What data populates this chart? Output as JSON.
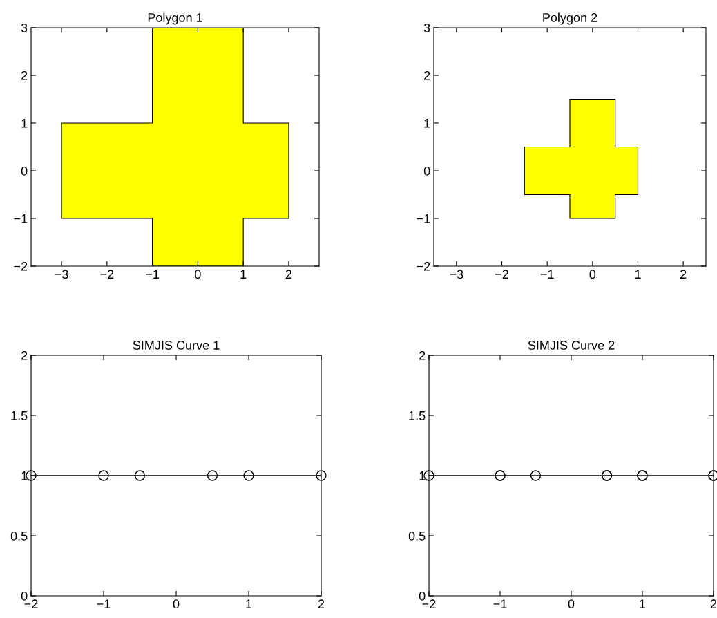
{
  "chart_data": [
    {
      "type": "area",
      "title": "Polygon 1",
      "xlim": [
        -3.67,
        2.67
      ],
      "ylim": [
        -2,
        3
      ],
      "xticks": [
        -3,
        -2,
        -1,
        0,
        1,
        2
      ],
      "yticks": [
        -2,
        -1,
        0,
        1,
        2,
        3
      ],
      "grid": false,
      "legend": false,
      "series": [
        {
          "color": "#ffff00",
          "x": [
            -1,
            1,
            1,
            2,
            2,
            1,
            1,
            -1,
            -1,
            -3,
            -3,
            -1
          ],
          "values": [
            -2,
            -2,
            -1,
            -1,
            1,
            1,
            3,
            3,
            1,
            1,
            -1,
            -1
          ]
        }
      ]
    },
    {
      "type": "area",
      "title": "Polygon 2",
      "xlim": [
        -3.5,
        2.5
      ],
      "ylim": [
        -2,
        3
      ],
      "xticks": [
        -3,
        -2,
        -1,
        0,
        1,
        2
      ],
      "yticks": [
        -2,
        -1,
        0,
        1,
        2,
        3
      ],
      "grid": false,
      "legend": false,
      "series": [
        {
          "color": "#ffff00",
          "x": [
            -0.5,
            0.5,
            0.5,
            1,
            1,
            0.5,
            0.5,
            -0.5,
            -0.5,
            -1.5,
            -1.5,
            -0.5
          ],
          "values": [
            -1,
            -1,
            -0.5,
            -0.5,
            0.5,
            0.5,
            1.5,
            1.5,
            0.5,
            0.5,
            -0.5,
            -0.5
          ]
        }
      ]
    },
    {
      "type": "line",
      "title": "SIMJIS Curve 1",
      "xlim": [
        -2,
        2
      ],
      "ylim": [
        0,
        2
      ],
      "xticks": [
        -2,
        -1,
        0,
        1,
        2
      ],
      "yticks": [
        0,
        0.5,
        1,
        1.5,
        2
      ],
      "grid": false,
      "legend": false,
      "marker": "circle",
      "line_style": "solid",
      "series": [
        {
          "color": "#000000",
          "x": [
            -2,
            -1,
            -0.5,
            0.5,
            1,
            2
          ],
          "values": [
            1,
            1,
            1,
            1,
            1,
            1
          ]
        }
      ]
    },
    {
      "type": "line",
      "title": "SIMJIS Curve 2",
      "xlim": [
        -2,
        2
      ],
      "ylim": [
        0,
        2
      ],
      "xticks": [
        -2,
        -1,
        0,
        1,
        2
      ],
      "yticks": [
        0,
        0.5,
        1,
        1.5,
        2
      ],
      "grid": false,
      "legend": false,
      "marker": "circle",
      "line_style": "solid",
      "series": [
        {
          "color": "#000000",
          "x": [
            -2,
            -1,
            -1,
            -0.5,
            0.5,
            0.5,
            1,
            1,
            2,
            2
          ],
          "values": [
            1,
            1,
            1,
            1,
            1,
            1,
            1,
            1,
            1,
            1
          ]
        }
      ]
    }
  ]
}
